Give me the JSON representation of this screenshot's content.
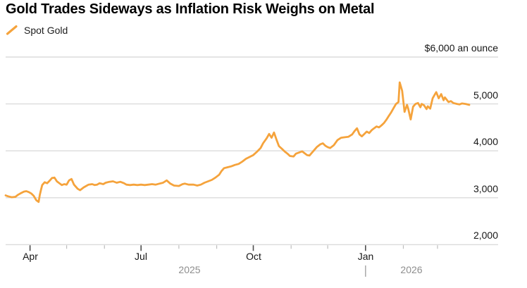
{
  "header": {
    "title": "Gold Trades Sideways as Inflation Risk Weighs on Metal"
  },
  "legend": {
    "label": "Spot Gold",
    "marker_icon": "slash-line-icon"
  },
  "colors": {
    "line": "#F5A33C",
    "grid": "#DBDBDB",
    "major_tick": "#4D4D4D",
    "minor_tick": "#BDBDBD",
    "year_divider": "#A8A8A8",
    "title_text": "#000000",
    "axis_text": "#161616",
    "year_text": "#8E8E8E",
    "background": "#FFFFFF"
  },
  "y_axis": {
    "labels": {
      "l6000": "$6,000 an ounce",
      "l5000": "5,000",
      "l4000": "4,000",
      "l3000": "3,000",
      "l2000": "2,000"
    }
  },
  "x_axis": {
    "months": {
      "apr": "Apr",
      "jul": "Jul",
      "oct": "Oct",
      "jan": "Jan"
    },
    "years": {
      "y2025": "2025",
      "y2026": "2026"
    }
  },
  "chart_data": {
    "type": "line",
    "title": "Gold Trades Sideways as Inflation Risk Weighs on Metal",
    "ylabel": "$ an ounce",
    "ylim": [
      2000,
      6000
    ],
    "y_ticks": [
      2000,
      3000,
      4000,
      5000,
      6000
    ],
    "x_range": [
      "2025-03-12",
      "2026-03-27"
    ],
    "x_major_ticks": [
      "2025-04-01",
      "2025-07-01",
      "2025-10-01",
      "2026-01-01"
    ],
    "x_minor_ticks": [
      "2025-05-01",
      "2025-06-01",
      "2025-08-01",
      "2025-09-01",
      "2025-11-01",
      "2025-12-01",
      "2026-02-01",
      "2026-03-01"
    ],
    "year_divider": "2026-01-01",
    "grid": "horizontal",
    "legend_position": "top-left",
    "series": [
      {
        "name": "Spot Gold",
        "color": "#F5A33C",
        "points": [
          [
            "2025-03-12",
            3050
          ],
          [
            "2025-03-14",
            3030
          ],
          [
            "2025-03-17",
            3010
          ],
          [
            "2025-03-20",
            3020
          ],
          [
            "2025-03-22",
            3060
          ],
          [
            "2025-03-24",
            3090
          ],
          [
            "2025-03-27",
            3130
          ],
          [
            "2025-03-29",
            3140
          ],
          [
            "2025-03-31",
            3120
          ],
          [
            "2025-04-02",
            3090
          ],
          [
            "2025-04-04",
            3040
          ],
          [
            "2025-04-06",
            2950
          ],
          [
            "2025-04-08",
            2910
          ],
          [
            "2025-04-09",
            3060
          ],
          [
            "2025-04-10",
            3170
          ],
          [
            "2025-04-11",
            3270
          ],
          [
            "2025-04-13",
            3330
          ],
          [
            "2025-04-15",
            3310
          ],
          [
            "2025-04-17",
            3360
          ],
          [
            "2025-04-19",
            3420
          ],
          [
            "2025-04-21",
            3430
          ],
          [
            "2025-04-23",
            3350
          ],
          [
            "2025-04-25",
            3310
          ],
          [
            "2025-04-27",
            3270
          ],
          [
            "2025-04-29",
            3290
          ],
          [
            "2025-05-01",
            3280
          ],
          [
            "2025-05-03",
            3370
          ],
          [
            "2025-05-05",
            3400
          ],
          [
            "2025-05-07",
            3280
          ],
          [
            "2025-05-10",
            3190
          ],
          [
            "2025-05-12",
            3160
          ],
          [
            "2025-05-15",
            3220
          ],
          [
            "2025-05-17",
            3250
          ],
          [
            "2025-05-19",
            3280
          ],
          [
            "2025-05-22",
            3290
          ],
          [
            "2025-05-24",
            3270
          ],
          [
            "2025-05-26",
            3280
          ],
          [
            "2025-05-28",
            3310
          ],
          [
            "2025-05-31",
            3290
          ],
          [
            "2025-06-02",
            3320
          ],
          [
            "2025-06-05",
            3340
          ],
          [
            "2025-06-08",
            3350
          ],
          [
            "2025-06-11",
            3320
          ],
          [
            "2025-06-14",
            3340
          ],
          [
            "2025-06-17",
            3310
          ],
          [
            "2025-06-19",
            3280
          ],
          [
            "2025-06-22",
            3270
          ],
          [
            "2025-06-25",
            3280
          ],
          [
            "2025-06-28",
            3270
          ],
          [
            "2025-07-01",
            3280
          ],
          [
            "2025-07-04",
            3270
          ],
          [
            "2025-07-07",
            3280
          ],
          [
            "2025-07-10",
            3290
          ],
          [
            "2025-07-13",
            3280
          ],
          [
            "2025-07-16",
            3300
          ],
          [
            "2025-07-19",
            3320
          ],
          [
            "2025-07-22",
            3370
          ],
          [
            "2025-07-25",
            3300
          ],
          [
            "2025-07-28",
            3260
          ],
          [
            "2025-08-01",
            3250
          ],
          [
            "2025-08-04",
            3290
          ],
          [
            "2025-08-06",
            3300
          ],
          [
            "2025-08-09",
            3280
          ],
          [
            "2025-08-13",
            3280
          ],
          [
            "2025-08-16",
            3260
          ],
          [
            "2025-08-19",
            3280
          ],
          [
            "2025-08-22",
            3320
          ],
          [
            "2025-08-25",
            3350
          ],
          [
            "2025-08-28",
            3380
          ],
          [
            "2025-08-31",
            3430
          ],
          [
            "2025-09-03",
            3490
          ],
          [
            "2025-09-05",
            3570
          ],
          [
            "2025-09-07",
            3630
          ],
          [
            "2025-09-10",
            3650
          ],
          [
            "2025-09-13",
            3670
          ],
          [
            "2025-09-16",
            3700
          ],
          [
            "2025-09-19",
            3720
          ],
          [
            "2025-09-22",
            3770
          ],
          [
            "2025-09-25",
            3830
          ],
          [
            "2025-09-28",
            3870
          ],
          [
            "2025-10-01",
            3910
          ],
          [
            "2025-10-04",
            3980
          ],
          [
            "2025-10-07",
            4060
          ],
          [
            "2025-10-09",
            4160
          ],
          [
            "2025-10-12",
            4270
          ],
          [
            "2025-10-14",
            4360
          ],
          [
            "2025-10-16",
            4280
          ],
          [
            "2025-10-18",
            4390
          ],
          [
            "2025-10-20",
            4240
          ],
          [
            "2025-10-22",
            4100
          ],
          [
            "2025-10-25",
            4030
          ],
          [
            "2025-10-27",
            3980
          ],
          [
            "2025-10-29",
            3940
          ],
          [
            "2025-10-31",
            3890
          ],
          [
            "2025-11-03",
            3880
          ],
          [
            "2025-11-05",
            3940
          ],
          [
            "2025-11-07",
            3960
          ],
          [
            "2025-11-10",
            3990
          ],
          [
            "2025-11-12",
            3950
          ],
          [
            "2025-11-14",
            3910
          ],
          [
            "2025-11-16",
            3900
          ],
          [
            "2025-11-19",
            3990
          ],
          [
            "2025-11-22",
            4080
          ],
          [
            "2025-11-25",
            4140
          ],
          [
            "2025-11-27",
            4160
          ],
          [
            "2025-11-29",
            4110
          ],
          [
            "2025-12-01",
            4080
          ],
          [
            "2025-12-03",
            4060
          ],
          [
            "2025-12-06",
            4120
          ],
          [
            "2025-12-09",
            4230
          ],
          [
            "2025-12-12",
            4280
          ],
          [
            "2025-12-15",
            4290
          ],
          [
            "2025-12-18",
            4300
          ],
          [
            "2025-12-21",
            4350
          ],
          [
            "2025-12-23",
            4420
          ],
          [
            "2025-12-25",
            4480
          ],
          [
            "2025-12-27",
            4350
          ],
          [
            "2025-12-29",
            4310
          ],
          [
            "2025-12-31",
            4360
          ],
          [
            "2026-01-02",
            4410
          ],
          [
            "2026-01-04",
            4380
          ],
          [
            "2026-01-06",
            4440
          ],
          [
            "2026-01-08",
            4480
          ],
          [
            "2026-01-10",
            4520
          ],
          [
            "2026-01-12",
            4500
          ],
          [
            "2026-01-14",
            4540
          ],
          [
            "2026-01-16",
            4590
          ],
          [
            "2026-01-18",
            4660
          ],
          [
            "2026-01-20",
            4740
          ],
          [
            "2026-01-22",
            4820
          ],
          [
            "2026-01-24",
            4910
          ],
          [
            "2026-01-26",
            5000
          ],
          [
            "2026-01-28",
            5040
          ],
          [
            "2026-01-29",
            5460
          ],
          [
            "2026-01-31",
            5280
          ],
          [
            "2026-02-02",
            4830
          ],
          [
            "2026-02-04",
            4980
          ],
          [
            "2026-02-05",
            4900
          ],
          [
            "2026-02-07",
            4670
          ],
          [
            "2026-02-09",
            4940
          ],
          [
            "2026-02-11",
            5000
          ],
          [
            "2026-02-13",
            5020
          ],
          [
            "2026-02-15",
            4930
          ],
          [
            "2026-02-16",
            5000
          ],
          [
            "2026-02-18",
            4970
          ],
          [
            "2026-02-20",
            4890
          ],
          [
            "2026-02-21",
            4950
          ],
          [
            "2026-02-23",
            4900
          ],
          [
            "2026-02-25",
            5120
          ],
          [
            "2026-02-27",
            5210
          ],
          [
            "2026-02-28",
            5250
          ],
          [
            "2026-03-02",
            5120
          ],
          [
            "2026-03-04",
            5210
          ],
          [
            "2026-03-06",
            5080
          ],
          [
            "2026-03-07",
            5140
          ],
          [
            "2026-03-10",
            5040
          ],
          [
            "2026-03-12",
            5060
          ],
          [
            "2026-03-14",
            5020
          ],
          [
            "2026-03-17",
            5000
          ],
          [
            "2026-03-19",
            4990
          ],
          [
            "2026-03-21",
            5010
          ],
          [
            "2026-03-24",
            5000
          ],
          [
            "2026-03-27",
            4980
          ]
        ]
      }
    ]
  }
}
